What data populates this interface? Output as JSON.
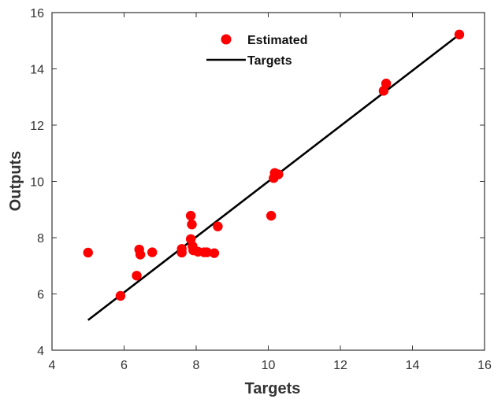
{
  "chart_data": {
    "type": "scatter",
    "xlabel": "Targets",
    "ylabel": "Outputs",
    "xlim": [
      4,
      16
    ],
    "ylim": [
      4,
      16
    ],
    "xticks": [
      4,
      6,
      8,
      10,
      12,
      14,
      16
    ],
    "yticks": [
      4,
      6,
      8,
      10,
      12,
      14,
      16
    ],
    "grid": false,
    "legend_position": "top-center",
    "colors": {
      "points": "#ff0000",
      "line": "#000000",
      "axis": "#333333",
      "background": "#ffffff"
    },
    "series": [
      {
        "name": "Estimated",
        "type": "scatter",
        "points": [
          {
            "x": 5.0,
            "y": 7.47
          },
          {
            "x": 5.9,
            "y": 5.93
          },
          {
            "x": 6.35,
            "y": 6.65
          },
          {
            "x": 6.42,
            "y": 7.58
          },
          {
            "x": 6.45,
            "y": 7.4
          },
          {
            "x": 6.78,
            "y": 7.48
          },
          {
            "x": 7.6,
            "y": 7.6
          },
          {
            "x": 7.6,
            "y": 7.47
          },
          {
            "x": 7.85,
            "y": 8.78
          },
          {
            "x": 7.88,
            "y": 8.47
          },
          {
            "x": 7.85,
            "y": 7.95
          },
          {
            "x": 7.9,
            "y": 7.7
          },
          {
            "x": 7.92,
            "y": 7.55
          },
          {
            "x": 8.05,
            "y": 7.5
          },
          {
            "x": 8.22,
            "y": 7.48
          },
          {
            "x": 8.3,
            "y": 7.48
          },
          {
            "x": 8.5,
            "y": 7.45
          },
          {
            "x": 8.6,
            "y": 8.4
          },
          {
            "x": 10.08,
            "y": 8.78
          },
          {
            "x": 10.15,
            "y": 10.12
          },
          {
            "x": 10.18,
            "y": 10.3
          },
          {
            "x": 10.28,
            "y": 10.25
          },
          {
            "x": 13.2,
            "y": 13.22
          },
          {
            "x": 13.27,
            "y": 13.48
          },
          {
            "x": 15.3,
            "y": 15.22
          }
        ]
      },
      {
        "name": "Targets",
        "type": "line",
        "points": [
          {
            "x": 5.0,
            "y": 5.07
          },
          {
            "x": 15.3,
            "y": 15.22
          }
        ]
      }
    ]
  }
}
